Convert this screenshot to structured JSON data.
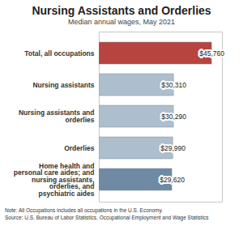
{
  "chart_data": {
    "type": "bar",
    "orientation": "horizontal",
    "title": "Nursing Assistants and Orderlies",
    "subtitle": "Median annual wages, May 2021",
    "categories": [
      "Total, all occupations",
      "Nursing assistants",
      "Nursing assistants and orderlies",
      "Orderlies",
      "Home health and personal care aides; and nursing assistants, orderlies, and psychiatric aides"
    ],
    "values": [
      45760,
      30310,
      30290,
      29990,
      29620
    ],
    "value_labels": [
      "$45,760",
      "$30,310",
      "$30,290",
      "$29,990",
      "$29,620"
    ],
    "colors": [
      "#b7443f",
      "#adbfcd",
      "#adbfcd",
      "#adbfcd",
      "#6f8ba3"
    ],
    "data_labels": true,
    "tick_labels": "y",
    "xlim": [
      0,
      50000
    ],
    "notes": [
      "Note: All Occupations includes all occupations in the U.S. Economy.",
      "Source: U.S. Bureau of Labor Statistics, Occupational Employment and Wage Statistics"
    ]
  }
}
